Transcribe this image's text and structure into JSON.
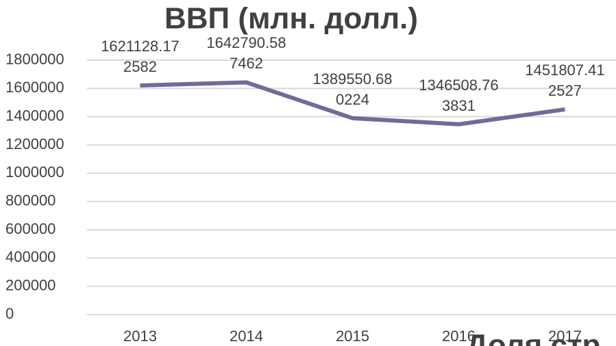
{
  "chart_data": {
    "type": "line",
    "title": "ВВП (млн. долл.)",
    "categories": [
      "2013",
      "2014",
      "2015",
      "2016",
      "2017"
    ],
    "series": [
      {
        "name": "ВВП",
        "color": "#76689a",
        "values": [
          1621128.172582,
          1642790.587462,
          1389550.680224,
          1346508.763831,
          1451807.412527
        ],
        "value_labels": [
          "1621128.172582",
          "1642790.587462",
          "1389550.680224",
          "1346508.763831",
          "1451807.412527"
        ]
      }
    ],
    "ylim": [
      0,
      1800000
    ],
    "yticks": [
      0,
      200000,
      400000,
      600000,
      800000,
      1000000,
      1200000,
      1400000,
      1600000,
      1800000
    ],
    "grid": true,
    "next_chart_title": "Доля стр"
  }
}
